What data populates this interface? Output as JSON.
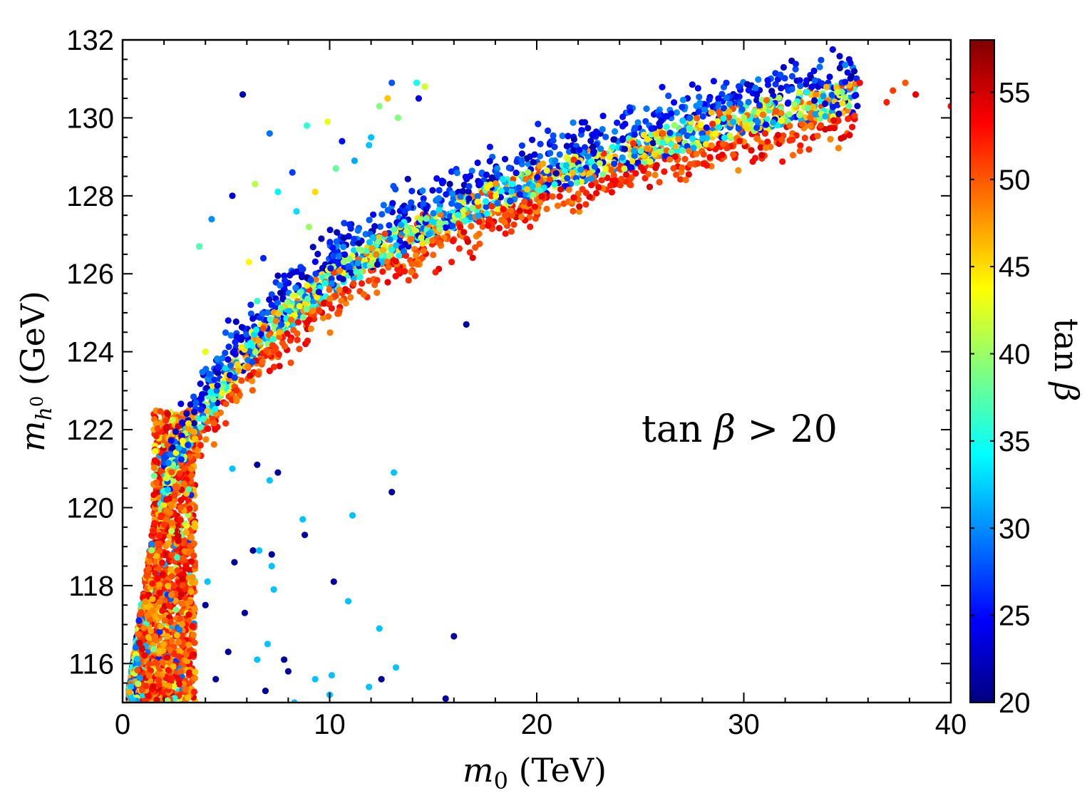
{
  "chart_data": {
    "type": "scatter",
    "title": "",
    "xlabel": "m_0 (TeV)",
    "ylabel": "m_h^0 (GeV)",
    "xlim": [
      0,
      40
    ],
    "ylim": [
      115,
      132
    ],
    "grid": false,
    "x_ticks": [
      0,
      10,
      20,
      30,
      40
    ],
    "y_ticks": [
      116,
      118,
      120,
      122,
      124,
      126,
      128,
      130,
      132
    ],
    "annotation": "tan β > 20",
    "colorbar": {
      "label": "tan β",
      "range": [
        20,
        58
      ],
      "ticks": [
        20,
        25,
        30,
        35,
        40,
        45,
        50,
        55
      ],
      "colormap": "jet"
    },
    "band": {
      "description": "dense band of points rising from about 121 GeV at 2 TeV to about 130.5 GeV at 36 TeV",
      "centerline": [
        [
          2,
          120.5
        ],
        [
          3,
          121.6
        ],
        [
          4,
          122.5
        ],
        [
          5,
          123.3
        ],
        [
          6,
          124.0
        ],
        [
          8,
          125.0
        ],
        [
          10,
          125.8
        ],
        [
          12,
          126.5
        ],
        [
          15,
          127.3
        ],
        [
          18,
          128.0
        ],
        [
          20,
          128.4
        ],
        [
          24,
          129.0
        ],
        [
          28,
          129.7
        ],
        [
          32,
          130.2
        ],
        [
          36,
          130.6
        ]
      ],
      "half_width_gev": 0.9,
      "point_count": 2600
    },
    "low_cluster": {
      "description": "dense cluster at low m0 (0.3-3.5 TeV) spanning 115-122.5 GeV, mostly tan β 45-55",
      "x_range": [
        0.3,
        3.5
      ],
      "y_range": [
        115,
        122.5
      ],
      "point_count": 2200
    },
    "upper_branch": {
      "description": "sparse branch of points above the main band between 5 and 15 TeV",
      "points": [
        [
          5.8,
          130.6
        ],
        [
          7.1,
          129.6
        ],
        [
          8.9,
          129.8
        ],
        [
          9.9,
          129.9
        ],
        [
          10.6,
          129.4
        ],
        [
          11.9,
          129.3
        ],
        [
          12.4,
          130.3
        ],
        [
          12.8,
          130.5
        ],
        [
          13.0,
          130.9
        ],
        [
          14.2,
          130.9
        ],
        [
          14.6,
          130.8
        ],
        [
          14.3,
          130.5
        ],
        [
          11.2,
          128.9
        ],
        [
          10.3,
          128.7
        ],
        [
          9.3,
          128.1
        ],
        [
          8.2,
          128.6
        ],
        [
          7.5,
          128.1
        ],
        [
          6.4,
          128.3
        ],
        [
          5.3,
          128.0
        ],
        [
          4.3,
          127.4
        ],
        [
          3.7,
          126.7
        ],
        [
          6.1,
          126.3
        ],
        [
          6.8,
          126.4
        ],
        [
          8.4,
          127.6
        ],
        [
          9.0,
          127.2
        ],
        [
          9.6,
          126.9
        ],
        [
          7.6,
          125.7
        ],
        [
          6.5,
          125.3
        ],
        [
          4.0,
          124.0
        ],
        [
          5.1,
          124.8
        ],
        [
          12.0,
          129.5
        ],
        [
          13.3,
          130.0
        ]
      ]
    },
    "outliers": [
      [
        16.6,
        124.7
      ],
      [
        5.3,
        121.0
      ],
      [
        6.5,
        121.1
      ],
      [
        7.1,
        120.7
      ],
      [
        7.5,
        120.9
      ],
      [
        13.1,
        120.9
      ],
      [
        13.0,
        120.4
      ],
      [
        8.7,
        119.7
      ],
      [
        8.8,
        119.3
      ],
      [
        11.1,
        119.8
      ],
      [
        6.3,
        118.9
      ],
      [
        6.6,
        118.9
      ],
      [
        7.2,
        118.8
      ],
      [
        7.2,
        118.5
      ],
      [
        5.4,
        118.6
      ],
      [
        4.1,
        118.1
      ],
      [
        10.2,
        118.1
      ],
      [
        7.3,
        117.9
      ],
      [
        4.0,
        117.5
      ],
      [
        10.9,
        117.6
      ],
      [
        5.9,
        117.3
      ],
      [
        12.4,
        116.9
      ],
      [
        16.0,
        116.7
      ],
      [
        7.0,
        116.5
      ],
      [
        5.1,
        116.3
      ],
      [
        6.5,
        116.1
      ],
      [
        7.8,
        116.1
      ],
      [
        13.2,
        115.9
      ],
      [
        8.0,
        115.8
      ],
      [
        10.1,
        115.7
      ],
      [
        4.5,
        115.6
      ],
      [
        9.3,
        115.6
      ],
      [
        12.5,
        115.6
      ],
      [
        11.9,
        115.4
      ],
      [
        6.9,
        115.3
      ],
      [
        10.0,
        115.2
      ],
      [
        15.6,
        115.1
      ],
      [
        8.3,
        115.0
      ],
      [
        40.0,
        130.3
      ],
      [
        38.3,
        130.6
      ],
      [
        37.8,
        130.9
      ],
      [
        37.2,
        130.7
      ],
      [
        36.9,
        130.4
      ],
      [
        35.6,
        130.9
      ]
    ]
  }
}
